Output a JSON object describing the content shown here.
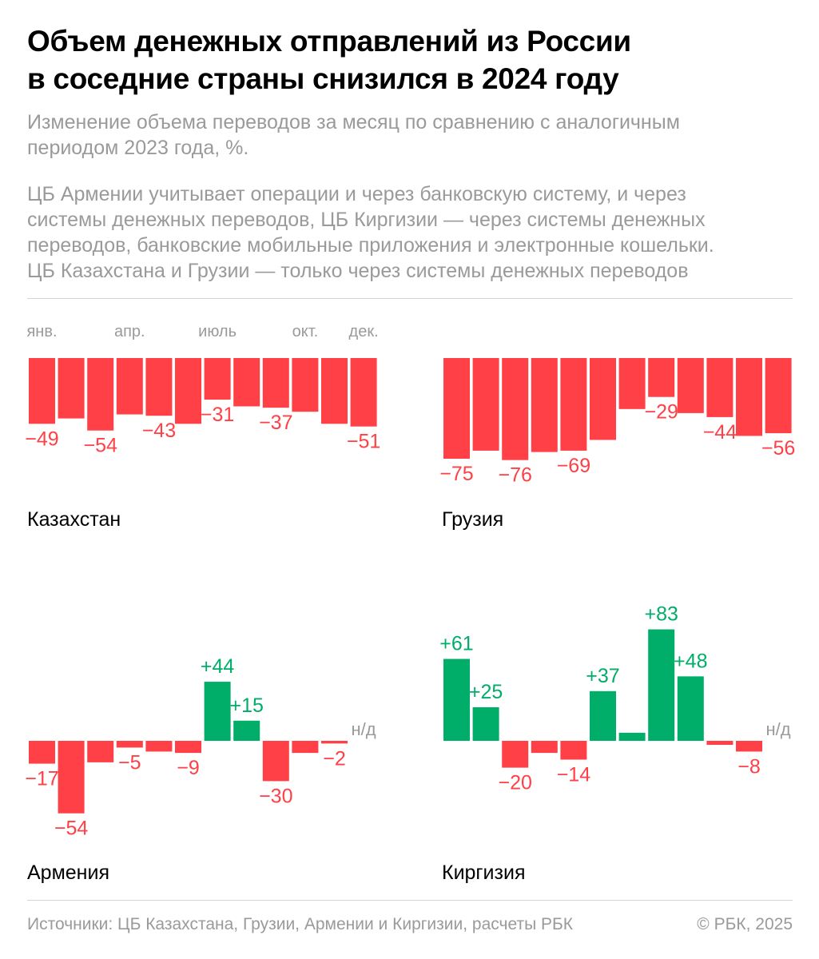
{
  "header": {
    "title_line1": "Объем денежных отправлений из России",
    "title_line2": "в соседние страны снизился в 2024 году",
    "subtitle_line1": "Изменение объема переводов за месяц по сравнению с аналогичным",
    "subtitle_line2": "периодом 2023 года, %.",
    "note_line1": "ЦБ Армении учитывает операции и через банковскую систему, и через",
    "note_line2": "системы денежных переводов, ЦБ Киргизии — через системы денежных",
    "note_line3": "переводов, банковские мобильные приложения и электронные кошельки.",
    "note_line4": "ЦБ Казахстана и Грузии — только через системы денежных переводов"
  },
  "colors": {
    "negative": "#ff4046",
    "positive": "#00ad69",
    "muted": "#9a9a9a"
  },
  "month_axis": {
    "labels": [
      "янв.",
      "апр.",
      "июль",
      "окт.",
      "дек."
    ],
    "month_index": [
      0,
      3,
      6,
      9,
      11
    ]
  },
  "chart_data": [
    {
      "type": "bar",
      "title": "Казахстан",
      "categories": [
        "янв.",
        "фев.",
        "март",
        "апр.",
        "май",
        "июнь",
        "июль",
        "авг.",
        "сент.",
        "окт.",
        "нояб.",
        "дек."
      ],
      "values": [
        -49,
        -45,
        -54,
        -42,
        -43,
        -49,
        -31,
        -36,
        -37,
        -40,
        -49,
        -51
      ],
      "value_labels": [
        "−49",
        "",
        "−54",
        "",
        "−43",
        "",
        "−31",
        "",
        "−37",
        "",
        "",
        "−51"
      ],
      "missing_label": "",
      "ylabel": "%"
    },
    {
      "type": "bar",
      "title": "Грузия",
      "categories": [
        "янв.",
        "фев.",
        "март",
        "апр.",
        "май",
        "июнь",
        "июль",
        "авг.",
        "сент.",
        "окт.",
        "нояб.",
        "дек."
      ],
      "values": [
        -75,
        -69,
        -76,
        -70,
        -69,
        -61,
        -38,
        -29,
        -41,
        -44,
        -58,
        -56
      ],
      "value_labels": [
        "−75",
        "",
        "−76",
        "",
        "−69",
        "",
        "",
        "−29",
        "",
        "−44",
        "",
        "−56"
      ],
      "missing_label": "",
      "ylabel": "%"
    },
    {
      "type": "bar",
      "title": "Армения",
      "categories": [
        "янв.",
        "фев.",
        "март",
        "апр.",
        "май",
        "июнь",
        "июль",
        "авг.",
        "сент.",
        "окт.",
        "нояб.",
        "дек."
      ],
      "values": [
        -17,
        -54,
        -16,
        -5,
        -8,
        -9,
        44,
        15,
        -30,
        -9,
        -2,
        null
      ],
      "value_labels": [
        "−17",
        "−54",
        "",
        "−5",
        "",
        "−9",
        "+44",
        "+15",
        "−30",
        "",
        "−2",
        ""
      ],
      "missing_label": "н/д",
      "ylabel": "%"
    },
    {
      "type": "bar",
      "title": "Киргизия",
      "categories": [
        "янв.",
        "фев.",
        "март",
        "апр.",
        "май",
        "июнь",
        "июль",
        "авг.",
        "сент.",
        "окт.",
        "нояб.",
        "дек."
      ],
      "values": [
        61,
        25,
        -20,
        -9,
        -14,
        37,
        6,
        83,
        48,
        -3,
        -8,
        null
      ],
      "value_labels": [
        "+61",
        "+25",
        "−20",
        "",
        "−14",
        "+37",
        "",
        "+83",
        "+48",
        "",
        "−8",
        ""
      ],
      "missing_label": "н/д",
      "ylabel": "%"
    }
  ],
  "footer": {
    "sources": "Источники: ЦБ Казахстана, Грузии, Армении и Киргизии, расчеты РБК",
    "copyright": "© РБК, 2025"
  }
}
